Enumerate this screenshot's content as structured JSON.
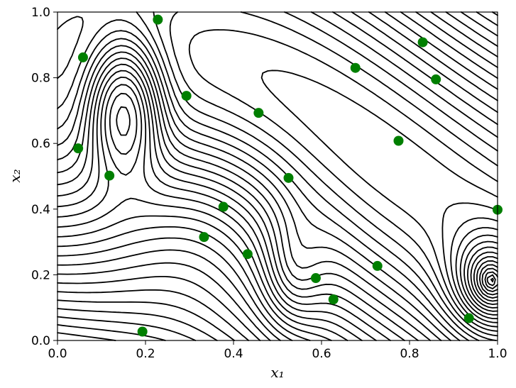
{
  "chart_data": {
    "type": "scatter",
    "title": "",
    "xlabel": "𝑥₁",
    "ylabel": "𝑥₂",
    "xlim": [
      0.0,
      1.0
    ],
    "ylim": [
      0.0,
      1.0
    ],
    "x_ticks": [
      "0.0",
      "0.2",
      "0.4",
      "0.6",
      "0.8",
      "1.0"
    ],
    "y_ticks": [
      "0.0",
      "0.2",
      "0.4",
      "0.6",
      "0.8",
      "1.0"
    ],
    "grid": false,
    "legend": "none",
    "background": "contour plot of an objective function drawn with black iso-lines (about 40 levels)",
    "colors": {
      "points": "#007f00",
      "contours": "#000000"
    },
    "series": [
      {
        "marker": "circle",
        "x": [
          0.058,
          0.228,
          0.047,
          0.118,
          0.293,
          0.457,
          0.525,
          0.377,
          0.333,
          0.432,
          0.587,
          0.627,
          0.677,
          0.727,
          0.775,
          0.83,
          0.86,
          0.935,
          1.0,
          0.193
        ],
        "y": [
          0.862,
          0.977,
          0.585,
          0.502,
          0.745,
          0.693,
          0.495,
          0.407,
          0.315,
          0.263,
          0.19,
          0.125,
          0.83,
          0.227,
          0.608,
          0.908,
          0.795,
          0.068,
          0.398,
          0.027
        ]
      }
    ]
  }
}
